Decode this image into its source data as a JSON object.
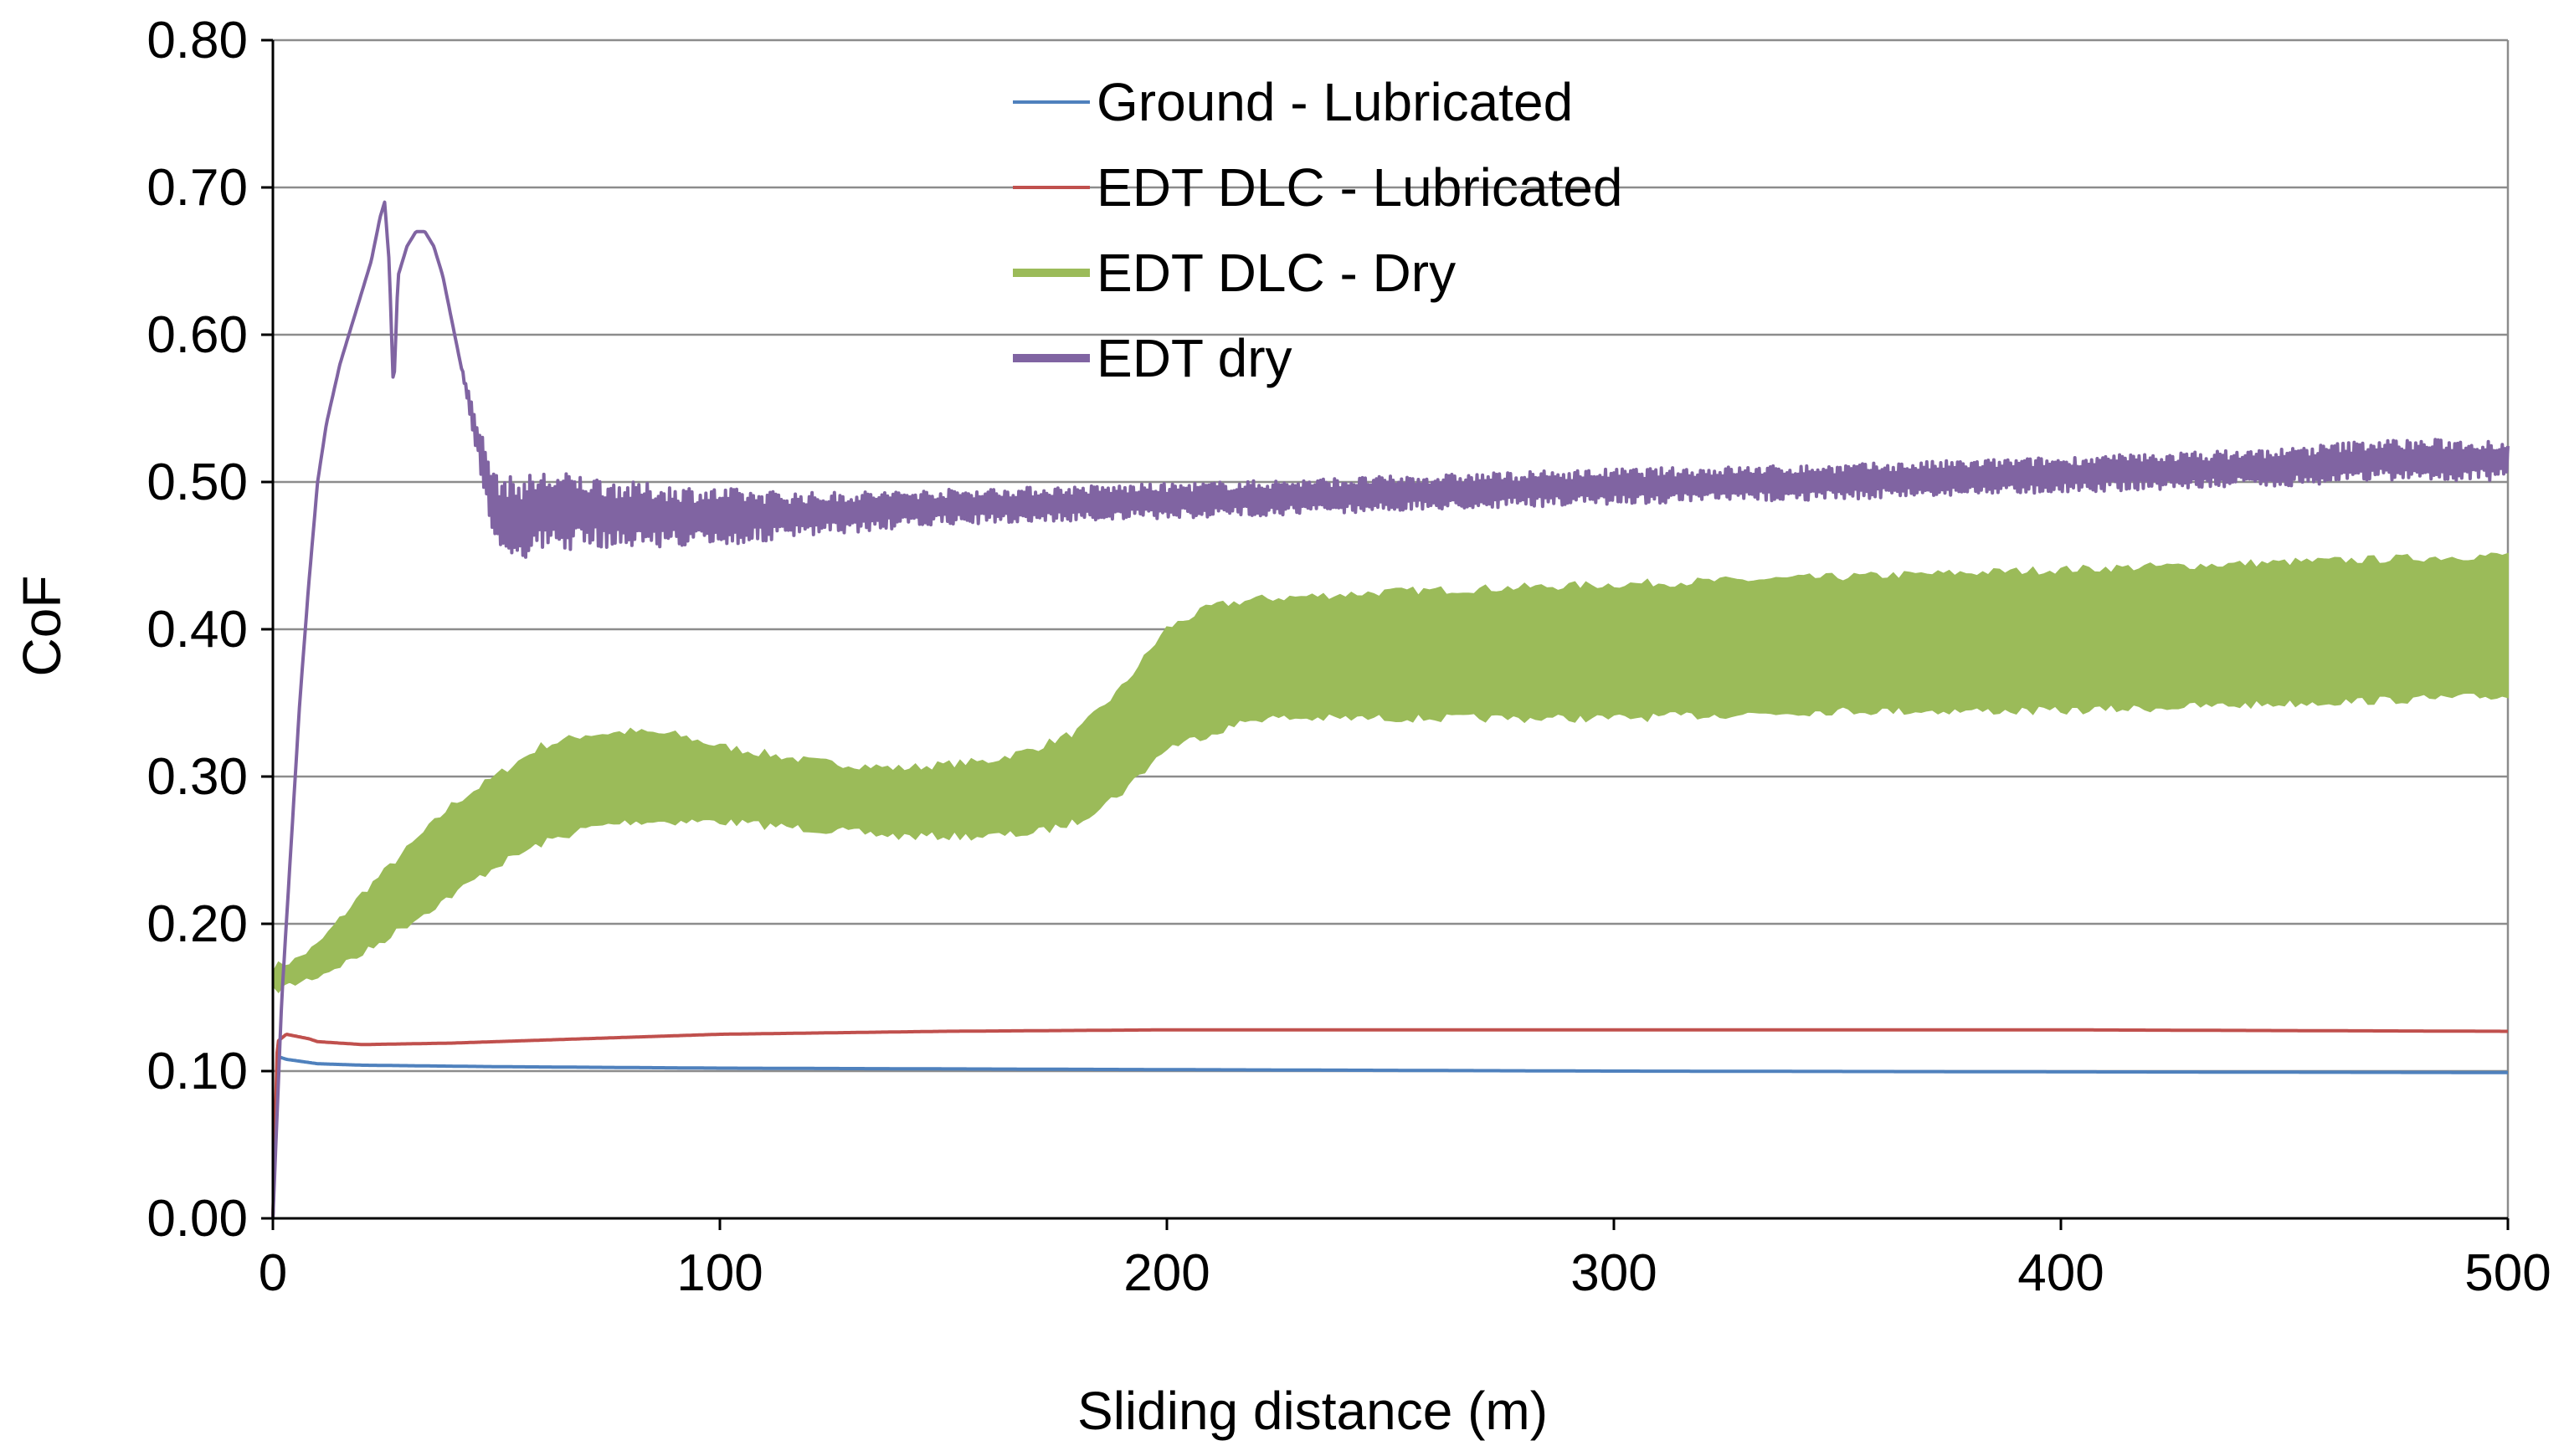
{
  "chart_data": {
    "type": "line",
    "title": "",
    "xlabel": "Sliding distance (m)",
    "ylabel": "CoF",
    "xlim": [
      0,
      500
    ],
    "ylim": [
      0,
      0.8
    ],
    "x_ticks": [
      0,
      100,
      200,
      300,
      400,
      500
    ],
    "x_tick_labels": [
      "0",
      "100",
      "200",
      "300",
      "400",
      "500"
    ],
    "y_ticks": [
      0,
      0.1,
      0.2,
      0.3,
      0.4,
      0.5,
      0.6,
      0.7,
      0.8
    ],
    "y_tick_labels": [
      "0.00",
      "0.10",
      "0.20",
      "0.30",
      "0.40",
      "0.50",
      "0.60",
      "0.70",
      "0.80"
    ],
    "grid": "horizontal",
    "legend_position": "top-center",
    "series": [
      {
        "name": "Ground - Lubricated",
        "color": "#4f81bd",
        "style": "line",
        "x": [
          0,
          1,
          3,
          10,
          20,
          50,
          100,
          200,
          300,
          400,
          500
        ],
        "y": [
          0.0,
          0.11,
          0.108,
          0.105,
          0.104,
          0.103,
          0.102,
          0.101,
          0.1,
          0.0995,
          0.099
        ]
      },
      {
        "name": "EDT DLC - Lubricated",
        "color": "#c0504d",
        "style": "line",
        "x": [
          0,
          1,
          3,
          8,
          10,
          20,
          40,
          60,
          80,
          100,
          150,
          200,
          300,
          400,
          500
        ],
        "y": [
          0.0,
          0.12,
          0.125,
          0.122,
          0.12,
          0.118,
          0.119,
          0.121,
          0.123,
          0.125,
          0.127,
          0.128,
          0.128,
          0.128,
          0.127
        ]
      },
      {
        "name": "EDT DLC - Dry",
        "color": "#9bbb59",
        "style": "band",
        "x": [
          0,
          5,
          10,
          20,
          30,
          40,
          50,
          60,
          70,
          80,
          90,
          100,
          120,
          140,
          160,
          170,
          180,
          190,
          195,
          200,
          210,
          220,
          250,
          300,
          350,
          400,
          450,
          500
        ],
        "y_low": [
          0.155,
          0.16,
          0.165,
          0.18,
          0.2,
          0.22,
          0.24,
          0.255,
          0.265,
          0.27,
          0.27,
          0.27,
          0.265,
          0.26,
          0.26,
          0.262,
          0.27,
          0.29,
          0.305,
          0.32,
          0.33,
          0.34,
          0.34,
          0.34,
          0.345,
          0.345,
          0.35,
          0.355
        ],
        "y_high": [
          0.17,
          0.175,
          0.185,
          0.22,
          0.25,
          0.28,
          0.3,
          0.32,
          0.328,
          0.33,
          0.328,
          0.32,
          0.31,
          0.305,
          0.31,
          0.318,
          0.33,
          0.36,
          0.38,
          0.4,
          0.415,
          0.42,
          0.425,
          0.43,
          0.435,
          0.44,
          0.445,
          0.45
        ]
      },
      {
        "name": "EDT dry",
        "color": "#8064a2",
        "style": "line",
        "x": [
          0,
          2,
          4,
          6,
          8,
          10,
          12,
          15,
          18,
          20,
          22,
          24,
          25,
          26,
          27,
          28,
          30,
          32,
          34,
          36,
          38,
          40,
          42,
          45,
          48,
          50,
          55,
          60,
          70,
          80,
          100,
          120,
          150,
          200,
          250,
          300,
          350,
          400,
          450,
          470,
          500
        ],
        "y": [
          0.0,
          0.15,
          0.25,
          0.35,
          0.43,
          0.5,
          0.54,
          0.58,
          0.61,
          0.63,
          0.65,
          0.68,
          0.69,
          0.65,
          0.56,
          0.64,
          0.66,
          0.67,
          0.67,
          0.66,
          0.64,
          0.61,
          0.58,
          0.54,
          0.5,
          0.48,
          0.475,
          0.48,
          0.48,
          0.478,
          0.476,
          0.478,
          0.483,
          0.487,
          0.492,
          0.497,
          0.5,
          0.505,
          0.51,
          0.515,
          0.515
        ],
        "band_half_width": [
          0,
          0,
          0,
          0,
          0,
          0,
          0,
          0,
          0,
          0,
          0,
          0,
          0,
          0,
          0,
          0,
          0,
          0,
          0,
          0,
          0,
          0,
          0,
          0.01,
          0.02,
          0.025,
          0.028,
          0.028,
          0.025,
          0.022,
          0.02,
          0.015,
          0.012,
          0.012,
          0.012,
          0.012,
          0.012,
          0.012,
          0.013,
          0.014,
          0.014
        ]
      }
    ]
  }
}
